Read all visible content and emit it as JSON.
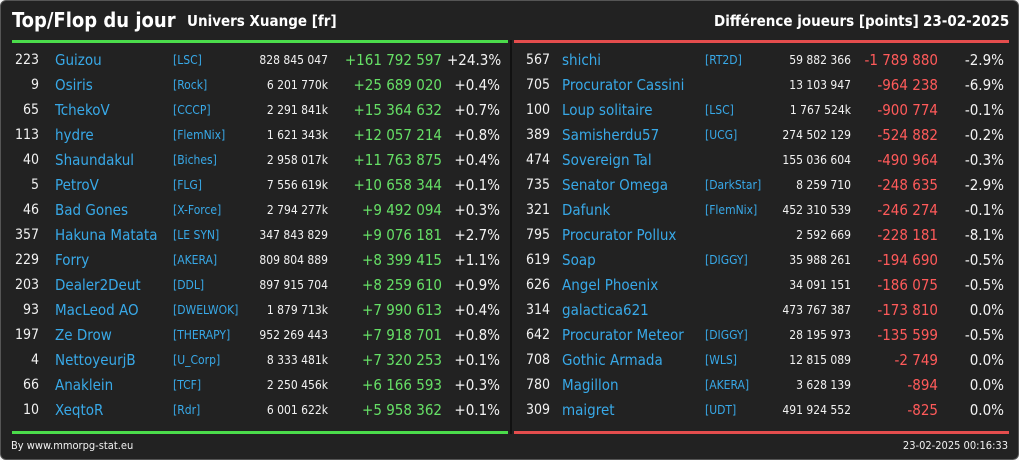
{
  "header": {
    "title": "Top/Flop du jour",
    "subtitle": "Univers Xuange [fr]",
    "metric": "Différence joueurs [points]",
    "date": "23-02-2025"
  },
  "colors": {
    "top_accent": "#4bdc4b",
    "flop_accent": "#e44d4d",
    "link": "#38a9e8",
    "background": "#222222"
  },
  "top": [
    {
      "rank": "223",
      "name": "Guizou",
      "alliance": "[LSC]",
      "points": "828 845 047",
      "diff": "+161 792 597",
      "pct": "+24.3%"
    },
    {
      "rank": "9",
      "name": "Osiris",
      "alliance": "[Rock]",
      "points": "6 201 770k",
      "diff": "+25 689 020",
      "pct": "+0.4%"
    },
    {
      "rank": "65",
      "name": "TchekoV",
      "alliance": "[CCCP]",
      "points": "2 291 841k",
      "diff": "+15 364 632",
      "pct": "+0.7%"
    },
    {
      "rank": "113",
      "name": "hydre",
      "alliance": "[FlemNix]",
      "points": "1 621 343k",
      "diff": "+12 057 214",
      "pct": "+0.8%"
    },
    {
      "rank": "40",
      "name": "Shaundakul",
      "alliance": "[Biches]",
      "points": "2 958 017k",
      "diff": "+11 763 875",
      "pct": "+0.4%"
    },
    {
      "rank": "5",
      "name": "PetroV",
      "alliance": "[FLG]",
      "points": "7 556 619k",
      "diff": "+10 658 344",
      "pct": "+0.1%"
    },
    {
      "rank": "46",
      "name": "Bad Gones",
      "alliance": "[X-Force]",
      "points": "2 794 277k",
      "diff": "+9 492 094",
      "pct": "+0.3%"
    },
    {
      "rank": "357",
      "name": "Hakuna Matata",
      "alliance": "[LE SYN]",
      "points": "347 843 829",
      "diff": "+9 076 181",
      "pct": "+2.7%"
    },
    {
      "rank": "229",
      "name": "Forry",
      "alliance": "[AKERA]",
      "points": "809 804 889",
      "diff": "+8 399 415",
      "pct": "+1.1%"
    },
    {
      "rank": "203",
      "name": "Dealer2Deut",
      "alliance": "[DDL]",
      "points": "897 915 704",
      "diff": "+8 259 610",
      "pct": "+0.9%"
    },
    {
      "rank": "93",
      "name": "MacLeod AO",
      "alliance": "[DWELWOK]",
      "points": "1 879 713k",
      "diff": "+7 990 613",
      "pct": "+0.4%"
    },
    {
      "rank": "197",
      "name": "Ze Drow",
      "alliance": "[THERAPY]",
      "points": "952 269 443",
      "diff": "+7 918 701",
      "pct": "+0.8%"
    },
    {
      "rank": "4",
      "name": "NettoyeurjB",
      "alliance": "[U_Corp]",
      "points": "8 333 481k",
      "diff": "+7 320 253",
      "pct": "+0.1%"
    },
    {
      "rank": "66",
      "name": "Anaklein",
      "alliance": "[TCF]",
      "points": "2 250 456k",
      "diff": "+6 166 593",
      "pct": "+0.3%"
    },
    {
      "rank": "10",
      "name": "XeqtoR",
      "alliance": "[Rdr]",
      "points": "6 001 622k",
      "diff": "+5 958 362",
      "pct": "+0.1%"
    }
  ],
  "flop": [
    {
      "rank": "567",
      "name": "shichi",
      "alliance": "[RT2D]",
      "points": "59 882 366",
      "diff": "-1 789 880",
      "pct": "-2.9%"
    },
    {
      "rank": "705",
      "name": "Procurator Cassini",
      "alliance": "",
      "points": "13 103 947",
      "diff": "-964 238",
      "pct": "-6.9%"
    },
    {
      "rank": "100",
      "name": "Loup solitaire",
      "alliance": "[LSC]",
      "points": "1 767 524k",
      "diff": "-900 774",
      "pct": "-0.1%"
    },
    {
      "rank": "389",
      "name": "Samisherdu57",
      "alliance": "[UCG]",
      "points": "274 502 129",
      "diff": "-524 882",
      "pct": "-0.2%"
    },
    {
      "rank": "474",
      "name": "Sovereign Tal",
      "alliance": "",
      "points": "155 036 604",
      "diff": "-490 964",
      "pct": "-0.3%"
    },
    {
      "rank": "735",
      "name": "Senator Omega",
      "alliance": "[DarkStar]",
      "points": "8 259 710",
      "diff": "-248 635",
      "pct": "-2.9%"
    },
    {
      "rank": "321",
      "name": "Dafunk",
      "alliance": "[FlemNix]",
      "points": "452 310 539",
      "diff": "-246 274",
      "pct": "-0.1%"
    },
    {
      "rank": "795",
      "name": "Procurator Pollux",
      "alliance": "",
      "points": "2 592 669",
      "diff": "-228 181",
      "pct": "-8.1%"
    },
    {
      "rank": "619",
      "name": "Soap",
      "alliance": "[DIGGY]",
      "points": "35 988 261",
      "diff": "-194 690",
      "pct": "-0.5%"
    },
    {
      "rank": "626",
      "name": "Angel Phoenix",
      "alliance": "",
      "points": "34 091 151",
      "diff": "-186 075",
      "pct": "-0.5%"
    },
    {
      "rank": "314",
      "name": "galactica621",
      "alliance": "",
      "points": "473 767 387",
      "diff": "-173 810",
      "pct": "0.0%"
    },
    {
      "rank": "642",
      "name": "Procurator Meteor",
      "alliance": "[DIGGY]",
      "points": "28 195 973",
      "diff": "-135 599",
      "pct": "-0.5%"
    },
    {
      "rank": "708",
      "name": "Gothic Armada",
      "alliance": "[WLS]",
      "points": "12 815 089",
      "diff": "-2 749",
      "pct": "0.0%"
    },
    {
      "rank": "780",
      "name": "Magillon",
      "alliance": "[AKERA]",
      "points": "3 628 139",
      "diff": "-894",
      "pct": "0.0%"
    },
    {
      "rank": "309",
      "name": "maigret",
      "alliance": "[UDT]",
      "points": "491 924 552",
      "diff": "-825",
      "pct": "0.0%"
    }
  ],
  "footer": {
    "credit": "By www.mmorpg-stat.eu",
    "timestamp": "23-02-2025 00:16:33"
  }
}
